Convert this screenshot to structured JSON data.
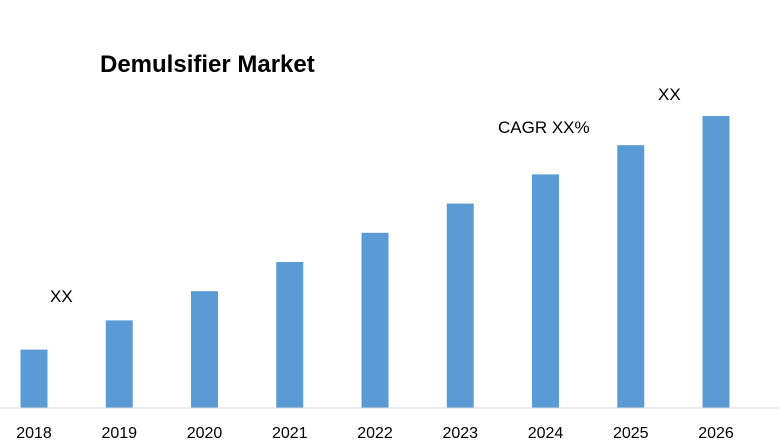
{
  "chart_data": {
    "type": "bar",
    "title": "Demulsifier Market",
    "categories": [
      "2018",
      "2019",
      "2020",
      "2021",
      "2022",
      "2023",
      "2024",
      "2025",
      "2026"
    ],
    "values": [
      20,
      30,
      40,
      50,
      60,
      70,
      80,
      90,
      100
    ],
    "xlabel": "",
    "ylabel": "",
    "ylim": [
      0,
      100
    ],
    "grid": false,
    "legend": "none",
    "bar_color": "#5B9BD5",
    "annotations": {
      "start_label": "XX",
      "cagr_label": "CAGR XX%",
      "end_label": "XX"
    }
  }
}
